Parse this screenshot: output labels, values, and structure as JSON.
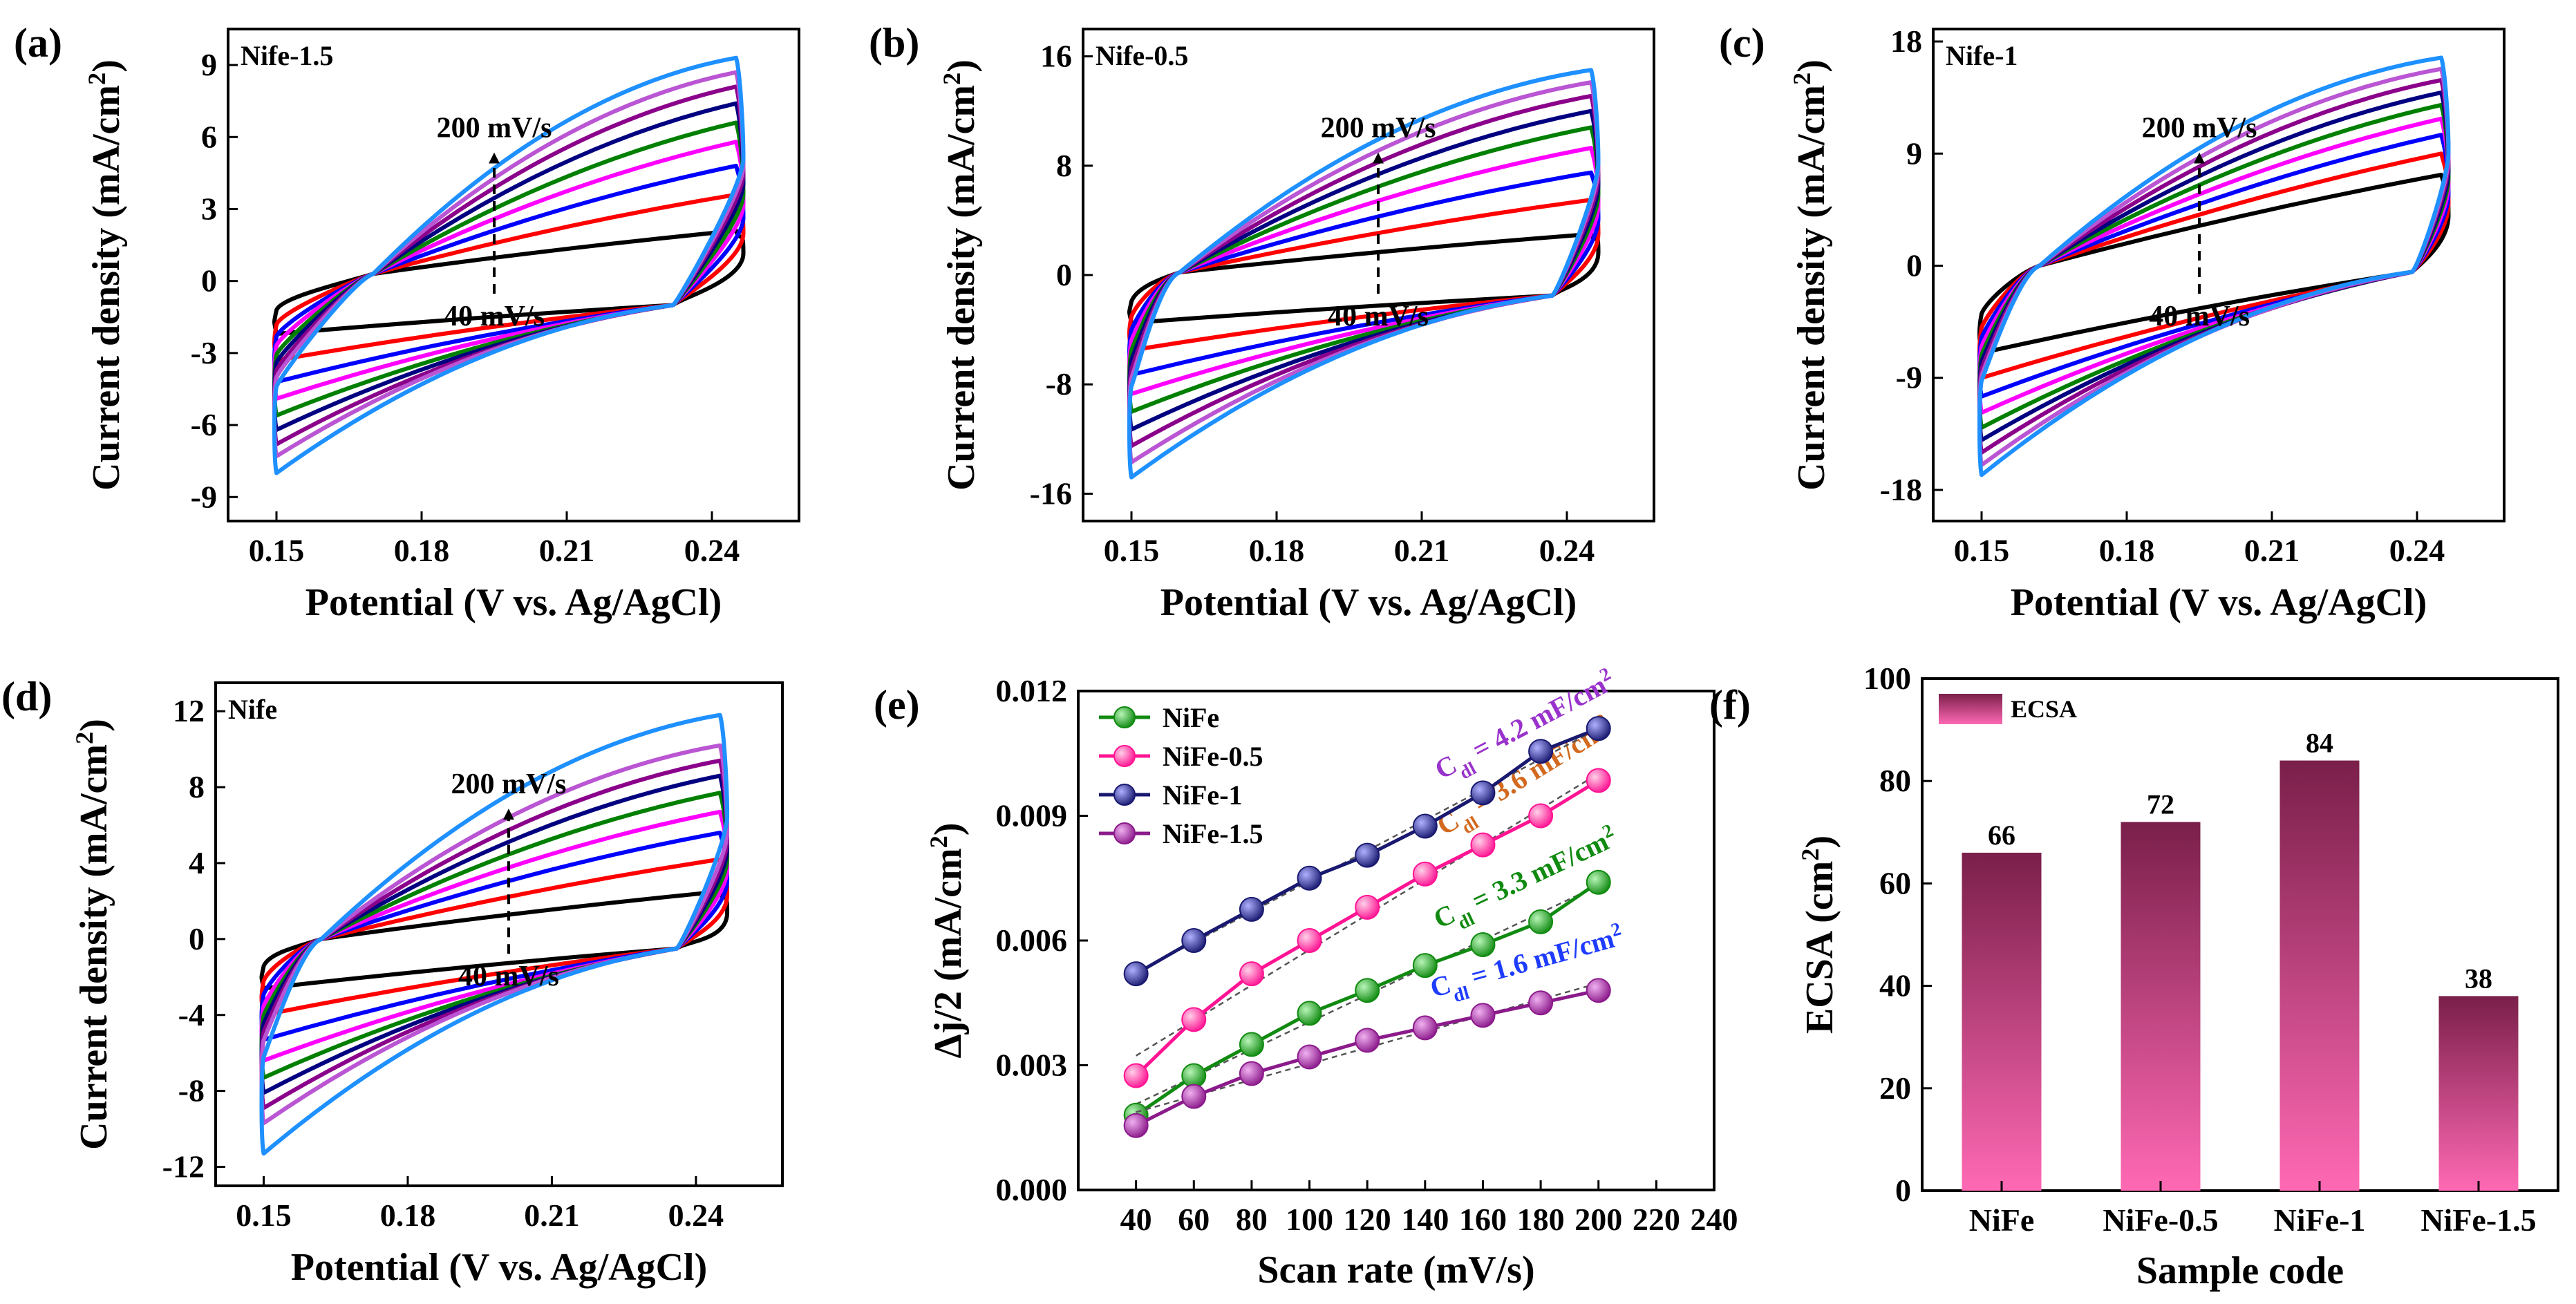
{
  "figure": {
    "colors": {
      "cv": [
        "#000000",
        "#ff0000",
        "#0000ff",
        "#ff00ff",
        "#008000",
        "#000080",
        "#8b008b",
        "#ba55d3",
        "#1e90ff"
      ],
      "nife": "#108a10",
      "nife05": "#ff1493",
      "nife1": "#191970",
      "nife15": "#8b1a8b",
      "bar_top": "#7a1f4a",
      "bar_bottom": "#ff69b4"
    },
    "icons": {
      "arrow": "dashed-arrow-icon",
      "marker": "sphere-marker-icon",
      "legend_swatch": "ecsa-swatch-icon"
    }
  },
  "chart_data": [
    {
      "panel": "(a)",
      "type": "line",
      "sample": "Nife-1.5",
      "xlabel": "Potential (V vs. Ag/AgCl)",
      "ylabel": "Current density (mA/cm²)",
      "xlim": [
        0.14,
        0.258
      ],
      "ylim": [
        -10,
        10.5
      ],
      "xticks": [
        "0.15",
        "0.18",
        "0.21",
        "0.24"
      ],
      "xtick_values": [
        0.15,
        0.18,
        0.21,
        0.24
      ],
      "yticks": [
        "-9",
        "-6",
        "-3",
        "0",
        "3",
        "6",
        "9"
      ],
      "ytick_values": [
        -9,
        -6,
        -3,
        0,
        3,
        6,
        9
      ],
      "scan_rates_mV_s": [
        40,
        60,
        80,
        100,
        120,
        140,
        160,
        180,
        200
      ],
      "top_current_at_0_245": [
        2.1,
        3.6,
        4.8,
        5.8,
        6.6,
        7.4,
        8.1,
        8.7,
        9.3
      ],
      "bottom_current_at_0_15": [
        -2.2,
        -3.3,
        -4.2,
        -4.9,
        -5.6,
        -6.2,
        -6.8,
        -7.3,
        -8.0
      ],
      "cross_lower": [
        0.17,
        0.3
      ],
      "cross_upper": [
        0.232,
        -1.0
      ],
      "annotation_top": "200 mV/s",
      "annotation_bottom": "40 mV/s"
    },
    {
      "panel": "(b)",
      "type": "line",
      "sample": "Nife-0.5",
      "xlabel": "Potential (V vs. Ag/AgCl)",
      "ylabel": "Current density (mA/cm²)",
      "xlim": [
        0.14,
        0.258
      ],
      "ylim": [
        -18,
        18
      ],
      "xticks": [
        "0.15",
        "0.18",
        "0.21",
        "0.24"
      ],
      "xtick_values": [
        0.15,
        0.18,
        0.21,
        0.24
      ],
      "yticks": [
        "-16",
        "-8",
        "0",
        "8",
        "16"
      ],
      "ytick_values": [
        -16,
        -8,
        0,
        8,
        16
      ],
      "scan_rates_mV_s": [
        40,
        60,
        80,
        100,
        120,
        140,
        160,
        180,
        200
      ],
      "top_current_at_0_245": [
        3.0,
        5.5,
        7.5,
        9.3,
        10.8,
        12.0,
        13.1,
        14.1,
        15.0
      ],
      "bottom_current_at_0_15": [
        -3.5,
        -5.5,
        -7.3,
        -8.7,
        -10.0,
        -11.3,
        -12.5,
        -13.7,
        -14.8
      ],
      "cross_lower": [
        0.16,
        0.2
      ],
      "cross_upper": [
        0.237,
        -1.5
      ],
      "annotation_top": "200 mV/s",
      "annotation_bottom": "40 mV/s"
    },
    {
      "panel": "(c)",
      "type": "line",
      "sample": "Nife-1",
      "xlabel": "Potential (V vs. Ag/AgCl)",
      "ylabel": "Current density (mA/cm²)",
      "xlim": [
        0.14,
        0.258
      ],
      "ylim": [
        -20.5,
        19
      ],
      "xticks": [
        "0.15",
        "0.18",
        "0.21",
        "0.24"
      ],
      "xtick_values": [
        0.15,
        0.18,
        0.21,
        0.24
      ],
      "yticks": [
        "-18",
        "-9",
        "0",
        "9",
        "18"
      ],
      "ytick_values": [
        -18,
        -9,
        0,
        9,
        18
      ],
      "scan_rates_mV_s": [
        40,
        60,
        80,
        100,
        120,
        140,
        160,
        180,
        200
      ],
      "top_current_at_0_245": [
        7.3,
        9.0,
        10.5,
        11.8,
        12.9,
        13.9,
        14.9,
        15.8,
        16.7
      ],
      "bottom_current_at_0_15": [
        -7.0,
        -9.0,
        -10.5,
        -11.8,
        -13.0,
        -14.0,
        -15.0,
        -16.0,
        -16.8
      ],
      "cross_lower": [
        0.162,
        0.0
      ],
      "cross_upper": [
        0.239,
        -0.5
      ],
      "annotation_top": "200 mV/s",
      "annotation_bottom": "40 mV/s"
    },
    {
      "panel": "(d)",
      "type": "line",
      "sample": "Nife",
      "xlabel": "Potential (V vs. Ag/AgCl)",
      "ylabel": "Current density (mA/cm²)",
      "xlim": [
        0.14,
        0.258
      ],
      "ylim": [
        -13,
        13.5
      ],
      "xticks": [
        "0.15",
        "0.18",
        "0.21",
        "0.24"
      ],
      "xtick_values": [
        0.15,
        0.18,
        0.21,
        0.24
      ],
      "yticks": [
        "-12",
        "-8",
        "-4",
        "0",
        "4",
        "8",
        "12"
      ],
      "ytick_values": [
        -12,
        -8,
        -4,
        0,
        4,
        8,
        12
      ],
      "scan_rates_mV_s": [
        40,
        60,
        80,
        100,
        120,
        140,
        160,
        180,
        200
      ],
      "top_current_at_0_245": [
        2.5,
        4.2,
        5.6,
        6.7,
        7.7,
        8.6,
        9.4,
        10.2,
        11.8
      ],
      "bottom_current_at_0_15": [
        -2.6,
        -4.0,
        -5.3,
        -6.4,
        -7.3,
        -8.1,
        -8.9,
        -9.7,
        -11.3
      ],
      "cross_lower": [
        0.162,
        0.0
      ],
      "cross_upper": [
        0.236,
        -0.5
      ],
      "annotation_top": "200 mV/s",
      "annotation_bottom": "40 mV/s"
    },
    {
      "panel": "(e)",
      "type": "scatter",
      "xlabel": "Scan rate (mV/s)",
      "ylabel": "Δj/2 (mA/cm²)",
      "xlim": [
        20,
        240
      ],
      "ylim": [
        0,
        0.012
      ],
      "xticks": [
        "40",
        "60",
        "80",
        "100",
        "120",
        "140",
        "160",
        "180",
        "200",
        "220",
        "240"
      ],
      "xtick_values": [
        40,
        60,
        80,
        100,
        120,
        140,
        160,
        180,
        200,
        220,
        240
      ],
      "yticks": [
        "0.000",
        "0.003",
        "0.006",
        "0.009",
        "0.012"
      ],
      "ytick_values": [
        0,
        0.003,
        0.006,
        0.009,
        0.012
      ],
      "x": [
        40,
        60,
        80,
        100,
        120,
        140,
        160,
        180,
        200
      ],
      "series": [
        {
          "name": "NiFe",
          "color_key": "nife",
          "values": [
            0.0018,
            0.00275,
            0.0035,
            0.00425,
            0.0048,
            0.0054,
            0.0059,
            0.00645,
            0.0074
          ],
          "fit": "C<sub>dl</sub> = 3.3 mF/cm²",
          "cdl_prefix": "C",
          "cdl_sub": "dl",
          "cdl_value": " = 3.3 mF/cm",
          "cdl_sup": "2",
          "label_color": "#108a10"
        },
        {
          "name": "NiFe-0.5",
          "color_key": "nife05",
          "values": [
            0.00275,
            0.0041,
            0.0052,
            0.006,
            0.0068,
            0.0076,
            0.0083,
            0.009,
            0.00985
          ],
          "fit": "C<sub>dl</sub> = 3.6 mF/cm²",
          "cdl_prefix": "C",
          "cdl_sub": "dl",
          "cdl_value": " = 3.6 mF/cm",
          "cdl_sup": "2",
          "label_color": "#d2691e"
        },
        {
          "name": "NiFe-1",
          "color_key": "nife1",
          "values": [
            0.0052,
            0.006,
            0.00675,
            0.0075,
            0.00805,
            0.00875,
            0.00955,
            0.01055,
            0.0111
          ],
          "fit": "C<sub>dl</sub> = 4.2 mF/cm²",
          "cdl_prefix": "C",
          "cdl_sub": "dl",
          "cdl_value": " = 4.2 mF/cm",
          "cdl_sup": "2",
          "label_color": "#9932cc"
        },
        {
          "name": "NiFe-1.5",
          "color_key": "nife15",
          "values": [
            0.00155,
            0.00225,
            0.0028,
            0.0032,
            0.0036,
            0.0039,
            0.0042,
            0.0045,
            0.0048
          ],
          "fit": "C<sub>dl</sub> = 1.6 mF/cm²",
          "cdl_prefix": "C",
          "cdl_sub": "dl",
          "cdl_value": " = 1.6 mF/cm",
          "cdl_sup": "2",
          "label_color": "#1e3cff"
        }
      ]
    },
    {
      "panel": "(f)",
      "type": "bar",
      "xlabel": "Sample code",
      "ylabel": "ECSA (cm²)",
      "ylim": [
        0,
        100
      ],
      "yticks": [
        "0",
        "20",
        "40",
        "60",
        "80",
        "100"
      ],
      "ytick_values": [
        0,
        20,
        40,
        60,
        80,
        100
      ],
      "categories": [
        "NiFe",
        "NiFe-0.5",
        "NiFe-1",
        "NiFe-1.5"
      ],
      "values": [
        66,
        72,
        84,
        38
      ],
      "value_labels": [
        "66",
        "72",
        "84",
        "38"
      ],
      "legend": "ECSA"
    }
  ]
}
